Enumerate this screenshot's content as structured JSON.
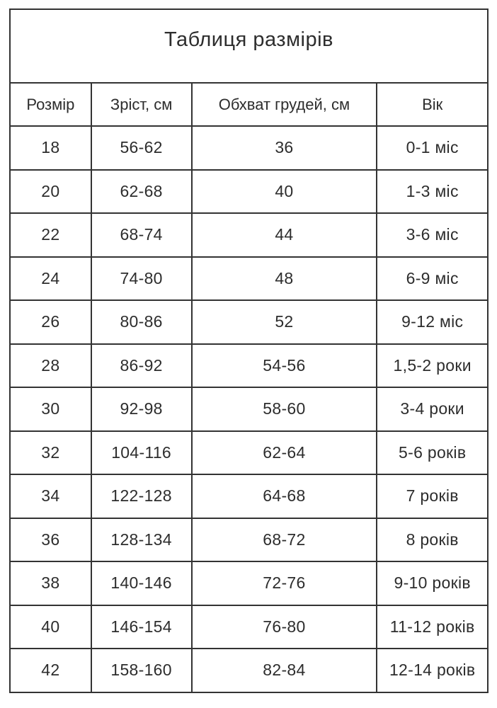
{
  "table": {
    "title": "Таблиця размірів",
    "columns": [
      "Розмір",
      "Зріст, см",
      "Обхват грудей, см",
      "Вік"
    ],
    "rows": [
      [
        "18",
        "56-62",
        "36",
        "0-1 міс"
      ],
      [
        "20",
        "62-68",
        "40",
        "1-3 міс"
      ],
      [
        "22",
        "68-74",
        "44",
        "3-6 міс"
      ],
      [
        "24",
        "74-80",
        "48",
        "6-9 міс"
      ],
      [
        "26",
        "80-86",
        "52",
        "9-12 міс"
      ],
      [
        "28",
        "86-92",
        "54-56",
        "1,5-2 роки"
      ],
      [
        "30",
        "92-98",
        "58-60",
        "3-4 роки"
      ],
      [
        "32",
        "104-116",
        "62-64",
        "5-6 років"
      ],
      [
        "34",
        "122-128",
        "64-68",
        "7 років"
      ],
      [
        "36",
        "128-134",
        "68-72",
        "8 років"
      ],
      [
        "38",
        "140-146",
        "72-76",
        "9-10 років"
      ],
      [
        "40",
        "146-154",
        "76-80",
        "11-12 років"
      ],
      [
        "42",
        "158-160",
        "82-84",
        "12-14 років"
      ]
    ],
    "colors": {
      "border": "#333333",
      "text": "#2d2d2d",
      "background": "#ffffff"
    }
  },
  "chart_data": {
    "type": "table",
    "title": "Таблиця размірів",
    "columns": [
      "Розмір",
      "Зріст, см",
      "Обхват грудей, см",
      "Вік"
    ],
    "rows": [
      [
        "18",
        "56-62",
        "36",
        "0-1 міс"
      ],
      [
        "20",
        "62-68",
        "40",
        "1-3 міс"
      ],
      [
        "22",
        "68-74",
        "44",
        "3-6 міс"
      ],
      [
        "24",
        "74-80",
        "48",
        "6-9 міс"
      ],
      [
        "26",
        "80-86",
        "52",
        "9-12 міс"
      ],
      [
        "28",
        "86-92",
        "54-56",
        "1,5-2 роки"
      ],
      [
        "30",
        "92-98",
        "58-60",
        "3-4 роки"
      ],
      [
        "32",
        "104-116",
        "62-64",
        "5-6 років"
      ],
      [
        "34",
        "122-128",
        "64-68",
        "7 років"
      ],
      [
        "36",
        "128-134",
        "68-72",
        "8 років"
      ],
      [
        "38",
        "140-146",
        "72-76",
        "9-10 років"
      ],
      [
        "40",
        "146-154",
        "76-80",
        "11-12 років"
      ],
      [
        "42",
        "158-160",
        "82-84",
        "12-14 років"
      ]
    ],
    "layout_hints": {
      "grid": true,
      "column_widths_pct": [
        17,
        21,
        38.8,
        23.2
      ],
      "title_row_spans_all_columns": true
    }
  }
}
